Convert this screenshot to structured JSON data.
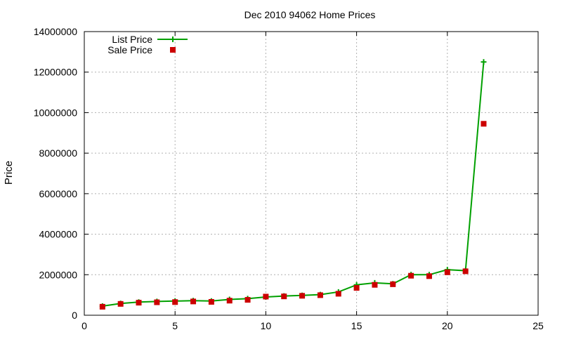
{
  "chart_data": {
    "type": "line",
    "title": "Dec 2010 94062 Home Prices",
    "xlabel": "",
    "ylabel": "Price",
    "xlim": [
      0,
      25
    ],
    "ylim": [
      0,
      14000000
    ],
    "x_ticks": [
      "0",
      "5",
      "10",
      "15",
      "20",
      "25"
    ],
    "y_ticks": [
      "0",
      "2000000",
      "4000000",
      "6000000",
      "8000000",
      "10000000",
      "12000000",
      "14000000"
    ],
    "grid": true,
    "legend_position": "top-left",
    "series": [
      {
        "name": "List Price",
        "style": "line-with-plus-markers",
        "color": "#00a000",
        "x": [
          1,
          2,
          3,
          4,
          5,
          6,
          7,
          8,
          9,
          10,
          11,
          12,
          13,
          14,
          15,
          16,
          17,
          18,
          19,
          20,
          21,
          22
        ],
        "y": [
          450000,
          580000,
          650000,
          680000,
          700000,
          720000,
          700000,
          780000,
          820000,
          900000,
          950000,
          980000,
          1020000,
          1150000,
          1500000,
          1600000,
          1550000,
          2000000,
          2000000,
          2250000,
          2200000,
          12500000
        ]
      },
      {
        "name": "Sale Price",
        "style": "square-markers",
        "color": "#cc0000",
        "x": [
          1,
          2,
          3,
          4,
          5,
          6,
          7,
          8,
          9,
          10,
          11,
          12,
          13,
          14,
          15,
          16,
          17,
          18,
          19,
          20,
          21,
          22
        ],
        "y": [
          420000,
          560000,
          620000,
          640000,
          650000,
          680000,
          660000,
          720000,
          760000,
          920000,
          930000,
          960000,
          990000,
          1060000,
          1350000,
          1500000,
          1530000,
          1950000,
          1930000,
          2120000,
          2170000,
          9450000
        ]
      }
    ]
  }
}
